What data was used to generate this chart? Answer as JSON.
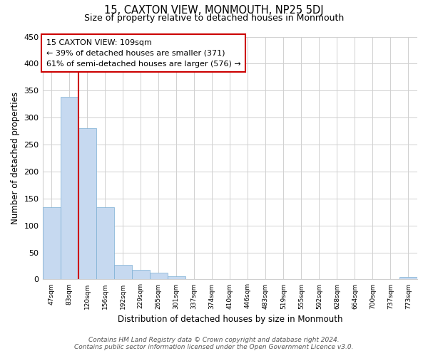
{
  "title": "15, CAXTON VIEW, MONMOUTH, NP25 5DJ",
  "subtitle": "Size of property relative to detached houses in Monmouth",
  "xlabel": "Distribution of detached houses by size in Monmouth",
  "ylabel": "Number of detached properties",
  "bar_labels": [
    "47sqm",
    "83sqm",
    "120sqm",
    "156sqm",
    "192sqm",
    "229sqm",
    "265sqm",
    "301sqm",
    "337sqm",
    "374sqm",
    "410sqm",
    "446sqm",
    "483sqm",
    "519sqm",
    "555sqm",
    "592sqm",
    "628sqm",
    "664sqm",
    "700sqm",
    "737sqm",
    "773sqm"
  ],
  "bar_values": [
    134,
    338,
    281,
    134,
    27,
    18,
    13,
    6,
    0,
    0,
    0,
    0,
    0,
    0,
    0,
    0,
    0,
    0,
    0,
    0,
    4
  ],
  "bar_color": "#c6d9f0",
  "bar_edge_color": "#7bafd4",
  "vline_color": "#cc0000",
  "ylim": [
    0,
    450
  ],
  "yticks": [
    0,
    50,
    100,
    150,
    200,
    250,
    300,
    350,
    400,
    450
  ],
  "annotation_title": "15 CAXTON VIEW: 109sqm",
  "annotation_line1": "← 39% of detached houses are smaller (371)",
  "annotation_line2": "61% of semi-detached houses are larger (576) →",
  "footer_line1": "Contains HM Land Registry data © Crown copyright and database right 2024.",
  "footer_line2": "Contains public sector information licensed under the Open Government Licence v3.0.",
  "background_color": "#ffffff",
  "grid_color": "#d0d0d0"
}
